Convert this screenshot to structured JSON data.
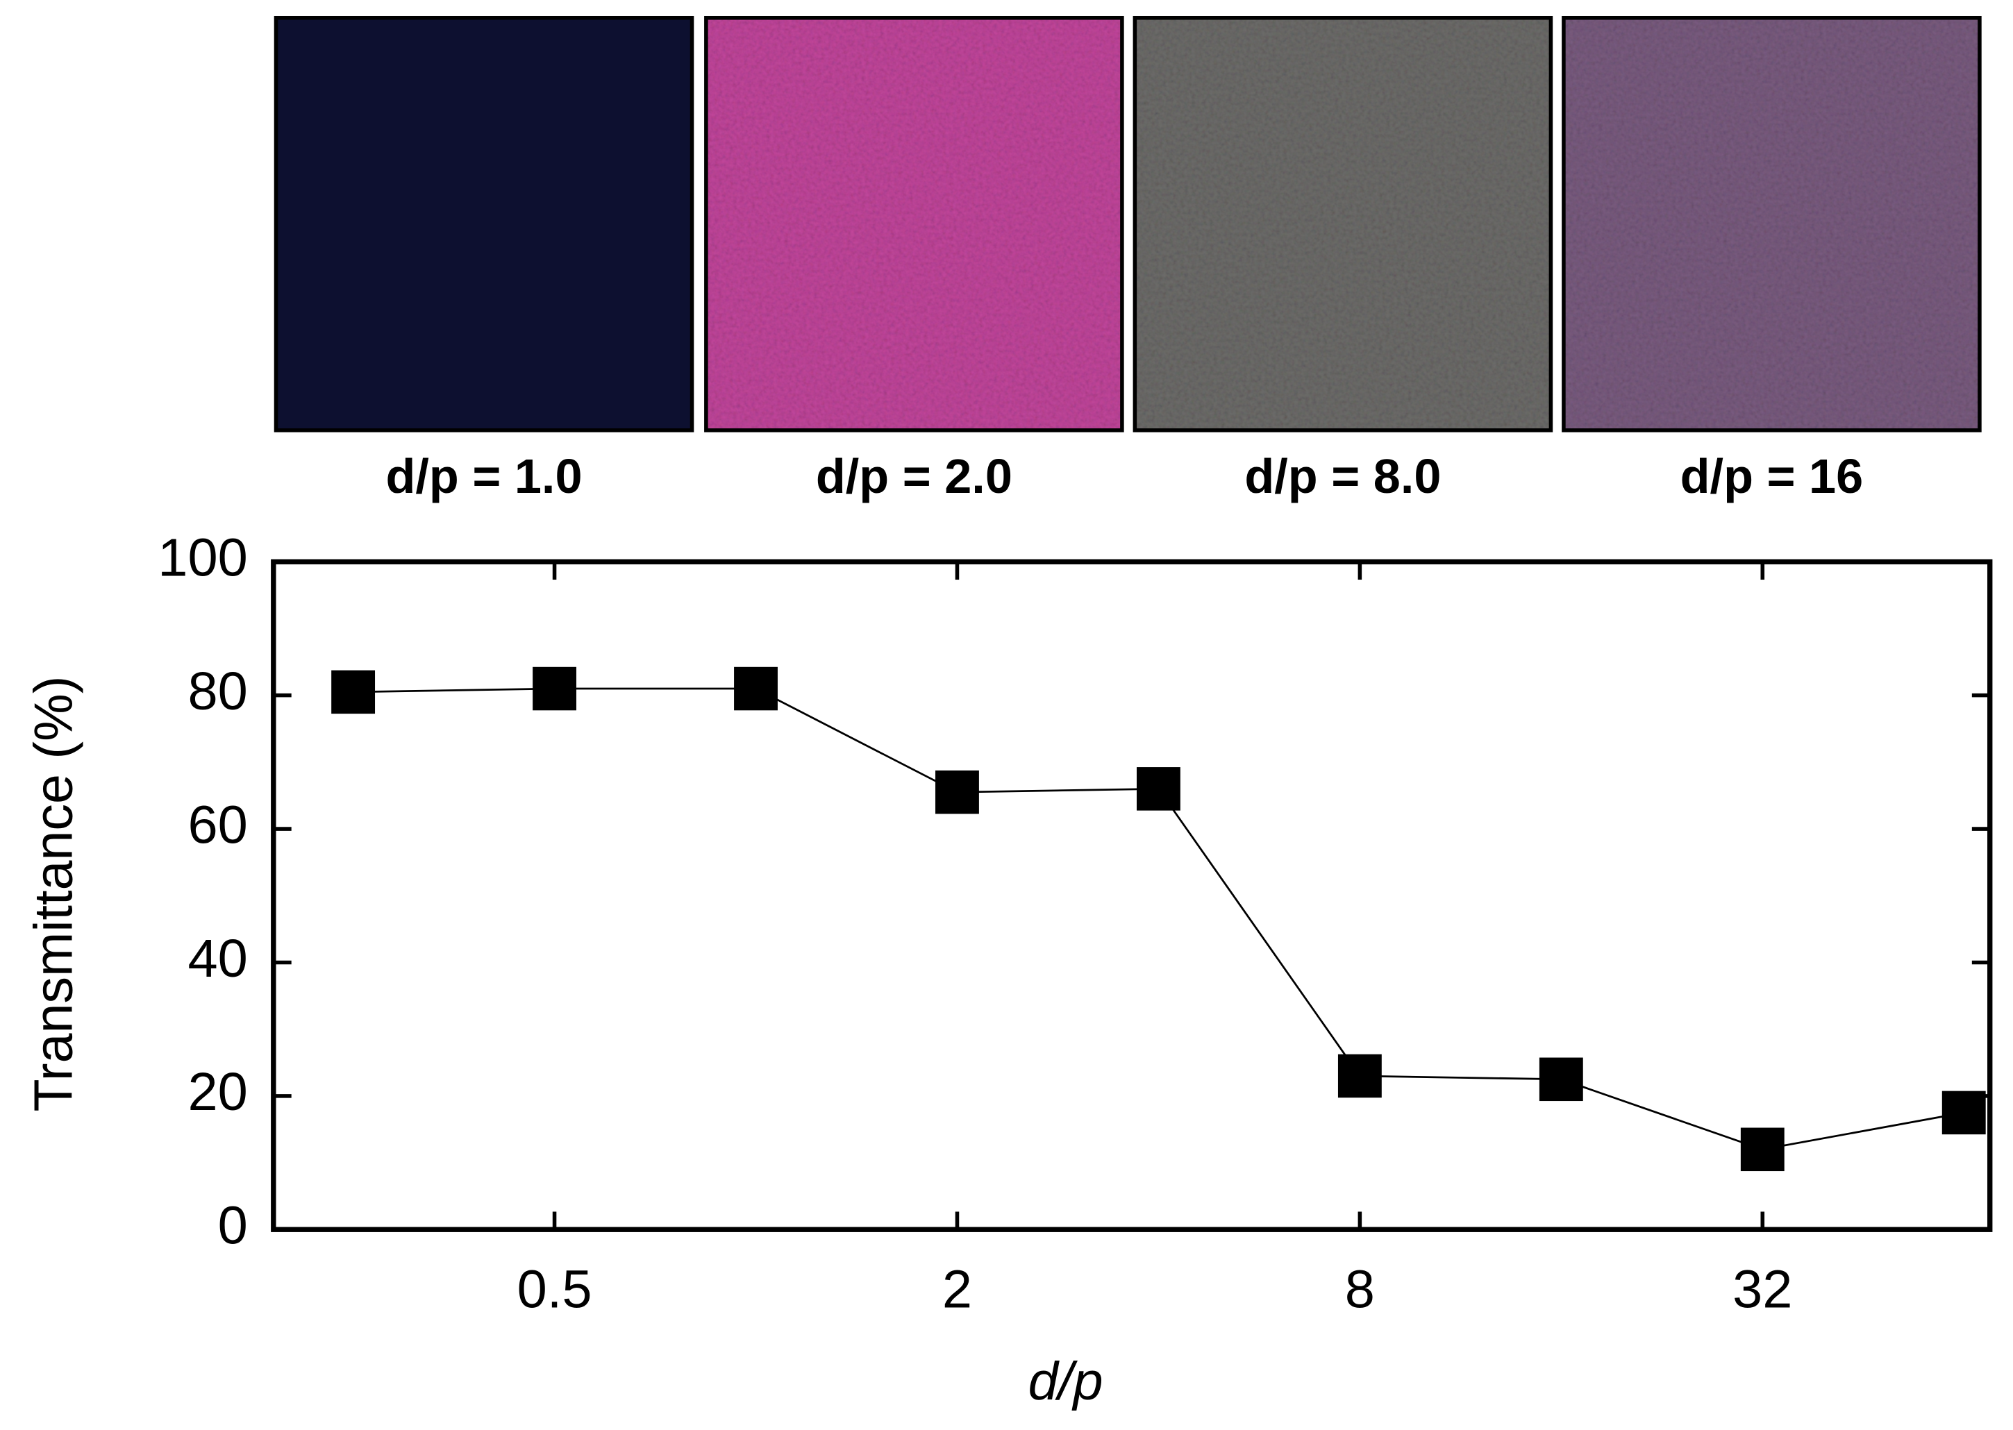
{
  "panels": [
    {
      "label": "d/p = 1.0",
      "color": "#0d1030"
    },
    {
      "label": "d/p = 2.0",
      "color": "#c2469c"
    },
    {
      "label": "d/p = 8.0",
      "color": "#6d6c6a"
    },
    {
      "label": "d/p = 16",
      "color": "#7a5c80"
    }
  ],
  "chart_data": {
    "type": "line",
    "x_label": "d/p",
    "y_label": "Transmittance (%)",
    "x": [
      0.25,
      0.5,
      1,
      2,
      4,
      8,
      16,
      32,
      64
    ],
    "series": [
      {
        "color": "#000000",
        "values": [
          80.5,
          81,
          81,
          65.5,
          66,
          23,
          22.5,
          12,
          17.5
        ]
      }
    ],
    "xscale": "log",
    "xlim": [
      0.19,
      70
    ],
    "xticks": [
      0.5,
      2,
      8,
      32
    ],
    "ylim": [
      0,
      100
    ],
    "yticks": [
      0,
      20,
      40,
      60,
      80,
      100
    ]
  }
}
